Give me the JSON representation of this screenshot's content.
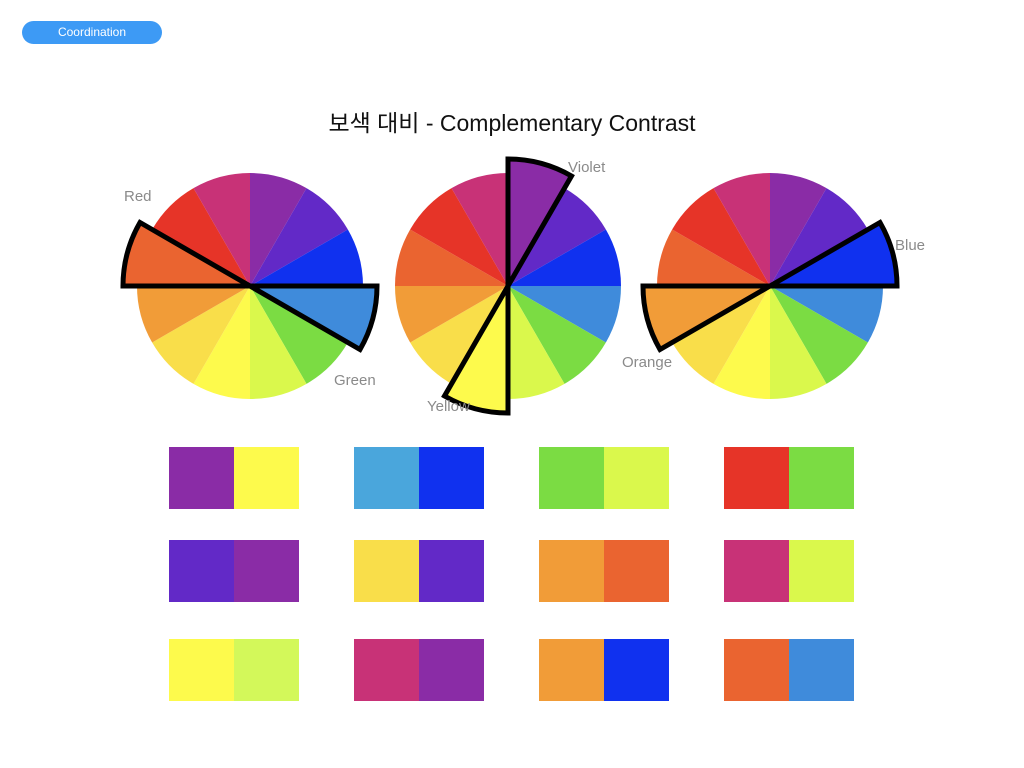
{
  "header": {
    "button_label": "Coordination"
  },
  "title": "보색 대비 - Complementary Contrast",
  "wheel_colors": [
    "#8a2ca6",
    "#6229c7",
    "#1031ef",
    "#3f8bdb",
    "#7bdc43",
    "#daf84c",
    "#fdfa4c",
    "#f9de4a",
    "#f19c38",
    "#ea6430",
    "#e63428",
    "#c83277"
  ],
  "wheels": [
    {
      "highlight": [
        3,
        9
      ],
      "labels": [
        "Green",
        "Red"
      ]
    },
    {
      "highlight": [
        0,
        6
      ],
      "labels": [
        "Violet",
        "Yellow"
      ]
    },
    {
      "highlight": [
        2,
        8
      ],
      "labels": [
        "Blue",
        "Orange"
      ]
    }
  ],
  "swatches": [
    [
      "#8a2ca6",
      "#fdfa4c"
    ],
    [
      "#4aa6dc",
      "#1031ef"
    ],
    [
      "#7bdc43",
      "#daf84c"
    ],
    [
      "#e63428",
      "#7bdc43"
    ],
    [
      "#6229c7",
      "#8a2ca6"
    ],
    [
      "#f9de4a",
      "#6229c7"
    ],
    [
      "#f19c38",
      "#ea6430"
    ],
    [
      "#c83277",
      "#daf84c"
    ],
    [
      "#fdfa4c",
      "#d3f85a"
    ],
    [
      "#c83277",
      "#8a2ca6"
    ],
    [
      "#f19c38",
      "#1031ef"
    ],
    [
      "#ea6430",
      "#3f8bdb"
    ]
  ]
}
